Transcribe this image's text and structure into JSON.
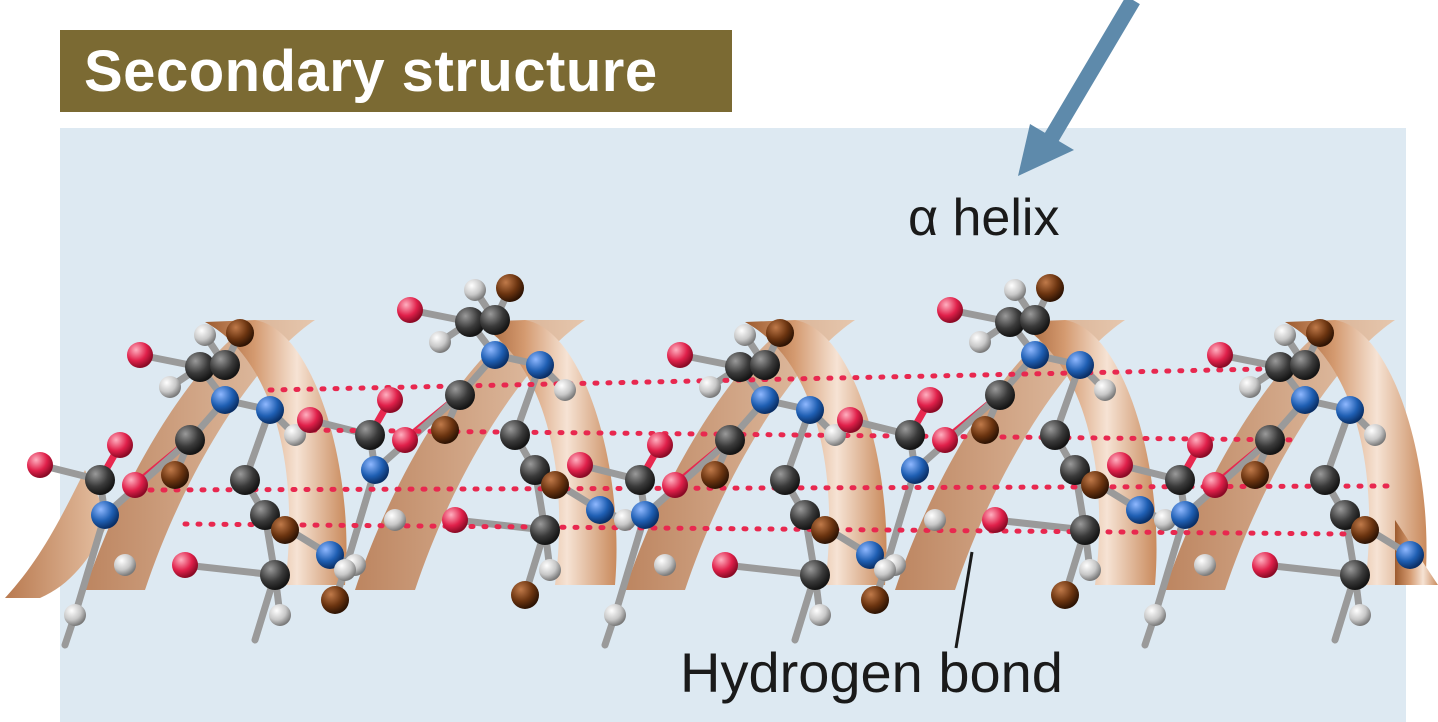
{
  "title": "Secondary structure",
  "labels": {
    "helix": "α helix",
    "hydrogen_bond": "Hydrogen bond"
  },
  "colors": {
    "title_bg": "#7b6a33",
    "panel_bg": "#dde9f2",
    "arrow": "#5e8aab",
    "ribbon": "#c98a5c",
    "ribbon_light": "#f5e0d0",
    "carbon": "#3a3a3a",
    "nitrogen": "#1f5fb3",
    "oxygen": "#e0204a",
    "hydrogen": "#c8c8c8",
    "side_chain": "#6b3410",
    "hydrogen_bond": "#e8284f",
    "backbone_bond": "#9a9a9a"
  },
  "atom_types": [
    "carbon",
    "nitrogen",
    "oxygen",
    "hydrogen",
    "side_chain"
  ]
}
